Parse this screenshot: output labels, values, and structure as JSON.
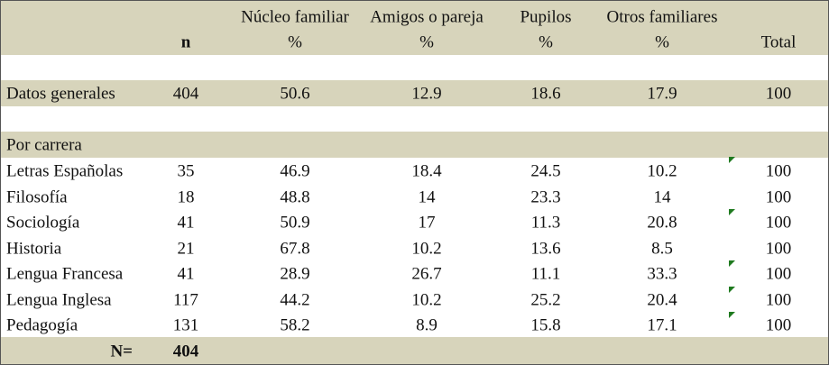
{
  "table": {
    "header": {
      "groups": [
        "Núcleo familiar",
        "Amigos o pareja",
        "Pupilos",
        "Otros familiares"
      ],
      "n": "n",
      "units": [
        "%",
        "%",
        "%",
        "%"
      ],
      "total": "Total"
    },
    "summary": {
      "label": "Datos generales",
      "values": [
        404,
        50.6,
        12.9,
        18.6,
        17.9,
        100
      ]
    },
    "section": "Por carrera",
    "rows": [
      {
        "label": "Letras Españolas",
        "values": [
          35,
          46.9,
          18.4,
          24.5,
          10.2,
          100
        ]
      },
      {
        "label": "Filosofía",
        "values": [
          18,
          48.8,
          14,
          23.3,
          14,
          100
        ]
      },
      {
        "label": "Sociología",
        "values": [
          41,
          50.9,
          17,
          11.3,
          20.8,
          100
        ]
      },
      {
        "label": "Historia",
        "values": [
          21,
          67.8,
          10.2,
          13.6,
          8.5,
          100
        ]
      },
      {
        "label": "Lengua Francesa",
        "values": [
          41,
          28.9,
          26.7,
          11.1,
          33.3,
          100
        ]
      },
      {
        "label": "Lengua Inglesa",
        "values": [
          117,
          44.2,
          10.2,
          25.2,
          20.4,
          100
        ]
      },
      {
        "label": "Pedagogía",
        "values": [
          131,
          58.2,
          8.9,
          15.8,
          17.1,
          100
        ]
      }
    ],
    "footer": {
      "label": "N=",
      "value": 404
    }
  }
}
